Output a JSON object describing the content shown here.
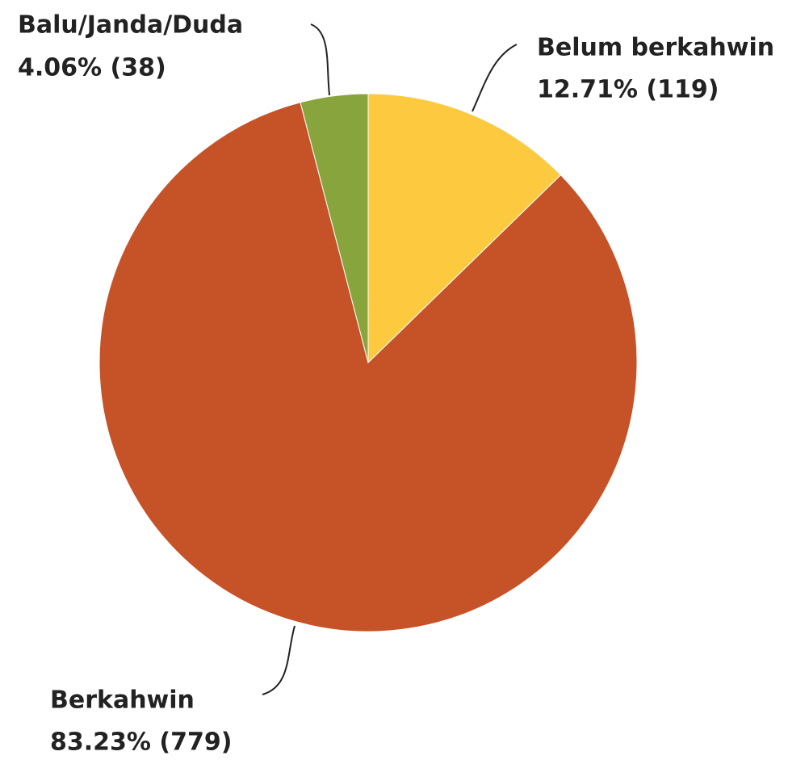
{
  "chart_data": {
    "type": "pie",
    "categories": [
      "Belum berkahwin",
      "Berkahwin",
      "Balu/Janda/Duda"
    ],
    "values": [
      12.71,
      83.23,
      4.06
    ],
    "value_labels": [
      "12.71% (119)",
      "83.23% (779)",
      "4.06% (38)"
    ],
    "colors": [
      "#fdc93f",
      "#c65228",
      "#88a53d"
    ]
  }
}
